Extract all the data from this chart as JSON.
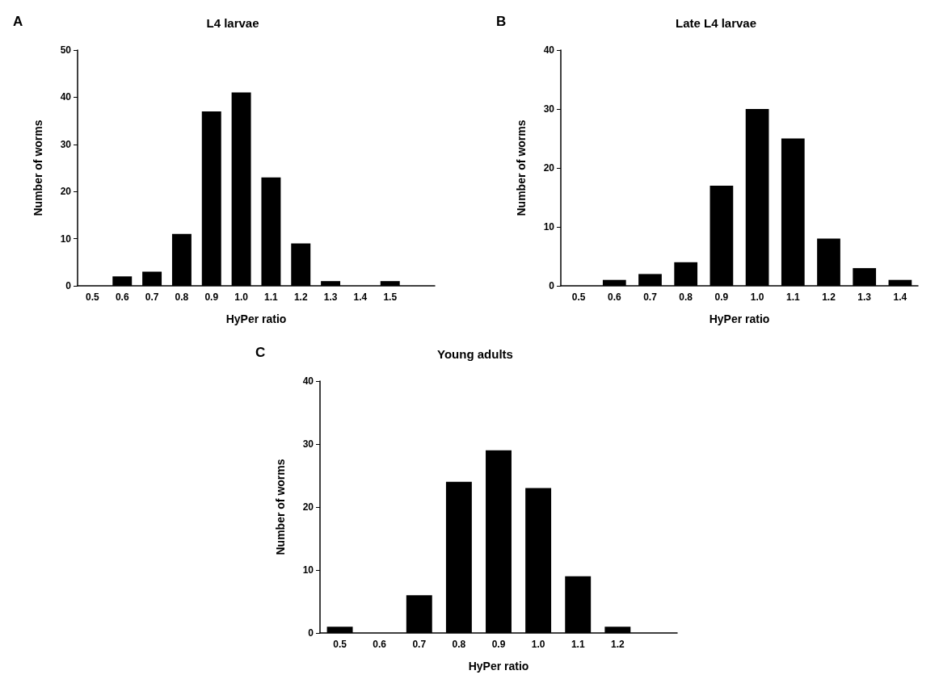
{
  "chart_data": [
    {
      "type": "bar",
      "title": "L4 larvae",
      "xlabel": "HyPer ratio",
      "ylabel": "Number of worms",
      "annotations": [
        "A"
      ],
      "categories": [
        "0.5",
        "0.6",
        "0.7",
        "0.8",
        "0.9",
        "1.0",
        "1.1",
        "1.2",
        "1.3",
        "1.4",
        "1.5",
        null
      ],
      "values": [
        0,
        2,
        3,
        11,
        37,
        41,
        23,
        9,
        1,
        0,
        1,
        null
      ],
      "color": "#000000",
      "ylim": [
        0,
        50
      ],
      "yticks": [
        0,
        10,
        20,
        30,
        40,
        50
      ],
      "grid": false
    },
    {
      "type": "bar",
      "title": "Late L4 larvae",
      "xlabel": "HyPer ratio",
      "ylabel": "Number of worms",
      "annotations": [
        "B"
      ],
      "categories": [
        "0.5",
        "0.6",
        "0.7",
        "0.8",
        "0.9",
        "1.0",
        "1.1",
        "1.2",
        "1.3",
        "1.4"
      ],
      "values": [
        0,
        1,
        2,
        4,
        17,
        30,
        25,
        8,
        3,
        1
      ],
      "color": "#000000",
      "ylim": [
        0,
        40
      ],
      "yticks": [
        0,
        10,
        20,
        30,
        40
      ],
      "grid": false
    },
    {
      "type": "bar",
      "title": "Young adults",
      "xlabel": "HyPer ratio",
      "ylabel": "Number of worms",
      "annotations": [
        "C"
      ],
      "categories": [
        "0.5",
        "0.6",
        "0.7",
        "0.8",
        "0.9",
        "1.0",
        "1.1",
        "1.2",
        null
      ],
      "values": [
        1,
        0,
        6,
        24,
        29,
        23,
        9,
        1,
        null
      ],
      "color": "#000000",
      "ylim": [
        0,
        40
      ],
      "yticks": [
        0,
        10,
        20,
        30,
        40
      ],
      "grid": false
    }
  ]
}
